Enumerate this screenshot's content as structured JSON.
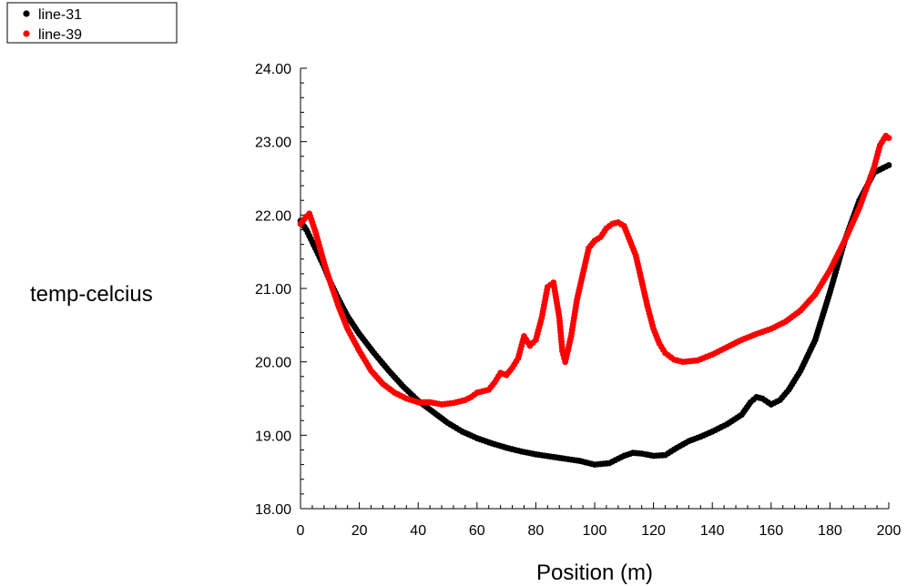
{
  "chart_data": {
    "type": "scatter",
    "title": "",
    "xlabel": "Position (m)",
    "ylabel": "temp-celcius",
    "xlim": [
      0,
      200
    ],
    "ylim": [
      18,
      24
    ],
    "x_ticks": [
      "0",
      "20",
      "40",
      "60",
      "80",
      "100",
      "120",
      "140",
      "160",
      "180",
      "200"
    ],
    "y_ticks": [
      "18.00",
      "19.00",
      "20.00",
      "21.00",
      "22.00",
      "23.00",
      "24.00"
    ],
    "x_minor_per_major": 4,
    "y_minor_per_major": 4,
    "grid": false,
    "legend_position": "top-left",
    "series": [
      {
        "name": "line-31",
        "color": "#000000",
        "points": [
          [
            0,
            21.92
          ],
          [
            2,
            21.8
          ],
          [
            5,
            21.55
          ],
          [
            8,
            21.3
          ],
          [
            10,
            21.1
          ],
          [
            13,
            20.85
          ],
          [
            16,
            20.62
          ],
          [
            20,
            20.38
          ],
          [
            25,
            20.12
          ],
          [
            30,
            19.88
          ],
          [
            35,
            19.66
          ],
          [
            40,
            19.47
          ],
          [
            45,
            19.32
          ],
          [
            50,
            19.17
          ],
          [
            55,
            19.05
          ],
          [
            60,
            18.96
          ],
          [
            65,
            18.89
          ],
          [
            70,
            18.83
          ],
          [
            75,
            18.78
          ],
          [
            80,
            18.74
          ],
          [
            85,
            18.71
          ],
          [
            90,
            18.68
          ],
          [
            95,
            18.65
          ],
          [
            100,
            18.6
          ],
          [
            105,
            18.62
          ],
          [
            110,
            18.72
          ],
          [
            113,
            18.76
          ],
          [
            116,
            18.75
          ],
          [
            120,
            18.72
          ],
          [
            124,
            18.73
          ],
          [
            128,
            18.83
          ],
          [
            132,
            18.92
          ],
          [
            136,
            18.98
          ],
          [
            140,
            19.05
          ],
          [
            145,
            19.15
          ],
          [
            150,
            19.28
          ],
          [
            153,
            19.45
          ],
          [
            155,
            19.52
          ],
          [
            157,
            19.5
          ],
          [
            160,
            19.42
          ],
          [
            163,
            19.48
          ],
          [
            166,
            19.62
          ],
          [
            170,
            19.88
          ],
          [
            175,
            20.3
          ],
          [
            180,
            20.95
          ],
          [
            185,
            21.65
          ],
          [
            190,
            22.2
          ],
          [
            195,
            22.58
          ],
          [
            200,
            22.68
          ]
        ]
      },
      {
        "name": "line-39",
        "color": "#ff0000",
        "points": [
          [
            0,
            21.88
          ],
          [
            2,
            21.98
          ],
          [
            3,
            22.02
          ],
          [
            5,
            21.78
          ],
          [
            8,
            21.35
          ],
          [
            10,
            21.1
          ],
          [
            13,
            20.75
          ],
          [
            16,
            20.45
          ],
          [
            20,
            20.15
          ],
          [
            24,
            19.88
          ],
          [
            28,
            19.7
          ],
          [
            32,
            19.58
          ],
          [
            36,
            19.5
          ],
          [
            40,
            19.45
          ],
          [
            44,
            19.45
          ],
          [
            48,
            19.42
          ],
          [
            52,
            19.44
          ],
          [
            56,
            19.48
          ],
          [
            58,
            19.52
          ],
          [
            60,
            19.58
          ],
          [
            64,
            19.62
          ],
          [
            66,
            19.72
          ],
          [
            68,
            19.85
          ],
          [
            70,
            19.82
          ],
          [
            72,
            19.92
          ],
          [
            74,
            20.05
          ],
          [
            76,
            20.35
          ],
          [
            78,
            20.22
          ],
          [
            80,
            20.3
          ],
          [
            82,
            20.6
          ],
          [
            84,
            21.02
          ],
          [
            86,
            21.08
          ],
          [
            88,
            20.6
          ],
          [
            89,
            20.15
          ],
          [
            90,
            20.0
          ],
          [
            92,
            20.35
          ],
          [
            94,
            20.85
          ],
          [
            96,
            21.2
          ],
          [
            98,
            21.55
          ],
          [
            100,
            21.65
          ],
          [
            102,
            21.7
          ],
          [
            104,
            21.82
          ],
          [
            106,
            21.88
          ],
          [
            108,
            21.9
          ],
          [
            110,
            21.85
          ],
          [
            112,
            21.65
          ],
          [
            114,
            21.45
          ],
          [
            116,
            21.1
          ],
          [
            118,
            20.75
          ],
          [
            120,
            20.45
          ],
          [
            122,
            20.25
          ],
          [
            124,
            20.12
          ],
          [
            127,
            20.03
          ],
          [
            130,
            20.0
          ],
          [
            135,
            20.02
          ],
          [
            140,
            20.1
          ],
          [
            145,
            20.2
          ],
          [
            150,
            20.3
          ],
          [
            155,
            20.38
          ],
          [
            160,
            20.45
          ],
          [
            165,
            20.55
          ],
          [
            170,
            20.7
          ],
          [
            175,
            20.92
          ],
          [
            180,
            21.25
          ],
          [
            185,
            21.65
          ],
          [
            190,
            22.1
          ],
          [
            195,
            22.65
          ],
          [
            197,
            22.95
          ],
          [
            199,
            23.08
          ],
          [
            200,
            23.05
          ]
        ]
      }
    ]
  }
}
